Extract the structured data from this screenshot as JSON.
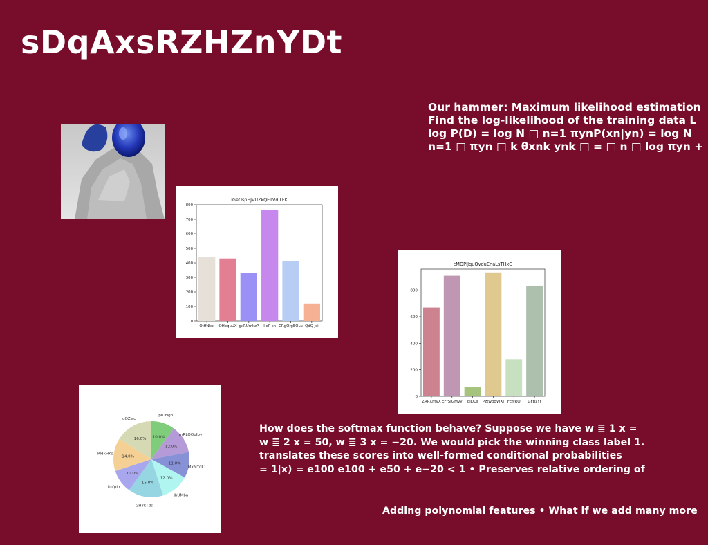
{
  "slide": {
    "title": "sDqAxsRZHZnYDt",
    "ml_lines": [
      "Our hammer: Maximum likelihood estimation",
      "Find the log-likelihood of the training data L",
      "log P(D) = log N □ n=1 πynP(xn|yn) = log N",
      "n=1 □ πyn □ k θxnk ynk □ = □ n □ log πyn +"
    ],
    "softmax_lines": [
      "How does the softmax function behave? Suppose we have w ≣ 1 x =",
      "w ≣ 2 x = 50, w ≣ 3 x = −20. We would pick the winning class label 1.",
      "translates these scores into well-formed conditional probabilities",
      "= 1|x) = e100 e100 + e50 + e−20 < 1 • Preserves relative ordering of"
    ],
    "poly_line": "Adding polynomial features • What if we add many more"
  },
  "colors": {
    "background": "#770d2b",
    "text": "#ffffff"
  },
  "chart_data": [
    {
      "type": "bar",
      "title": "lGefTspHJVUZkQETVdILFK",
      "categories": [
        "OtffNIsx",
        "OHoquUX",
        "gxRUmkzP",
        "I eP sh",
        "CRgOrgEOLu",
        "QdQ Jsi"
      ],
      "values": [
        440,
        430,
        330,
        765,
        410,
        120
      ],
      "colors": [
        "#e6e0d8",
        "#e37f93",
        "#9b90f5",
        "#c688ec",
        "#b8cdf3",
        "#f6b093"
      ],
      "ylim": [
        0,
        800
      ],
      "yticks": [
        0,
        100,
        200,
        300,
        400,
        500,
        600,
        700,
        800
      ],
      "xlabel": "",
      "ylabel": ""
    },
    {
      "type": "bar",
      "title": "cMQPIJquOvduEnaLsTHxG",
      "categories": [
        "ZRPXmvX",
        "EFfSJGMvy",
        "oIDLe",
        "PztwoqWXj",
        "FcfrRQ",
        "GFbzYr"
      ],
      "values": [
        670,
        910,
        70,
        935,
        280,
        835
      ],
      "colors": [
        "#cd8290",
        "#bf97b2",
        "#a5c37c",
        "#e0c98f",
        "#c6e0c0",
        "#adbfad"
      ],
      "ylim": [
        0,
        960
      ],
      "yticks": [
        0,
        200,
        400,
        600,
        800
      ],
      "xlabel": "",
      "ylabel": ""
    },
    {
      "type": "pie",
      "labels": [
        "pIOHgb",
        "mRLQOuIbv",
        "MxMYdCL",
        "JbUMba",
        "GHYkTds",
        "ltofpLr",
        "PIdkHKo",
        "uOZwc"
      ],
      "values": [
        10.0,
        12.0,
        11.0,
        12.0,
        15.0,
        10.0,
        14.0,
        16.0
      ],
      "pct_labels": [
        "10.0%",
        "12.0%",
        "11.0%",
        "12.0%",
        "15.0%",
        "10.0%",
        "14.0%",
        "16.0%"
      ],
      "colors": [
        "#7fcc7b",
        "#b49ad6",
        "#8791d6",
        "#b0f5ef",
        "#95d6e2",
        "#a8a6ec",
        "#f5d095",
        "#d6dab4"
      ]
    }
  ]
}
